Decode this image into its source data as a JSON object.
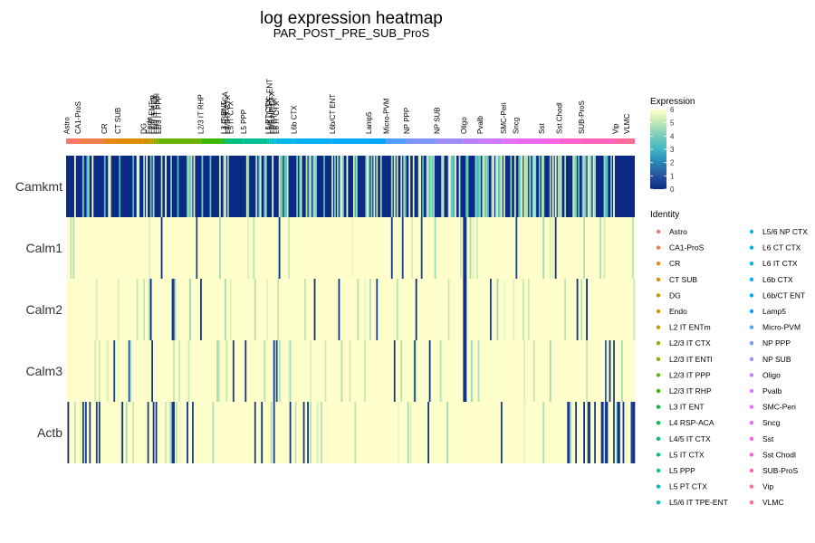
{
  "chart_data": {
    "type": "heatmap",
    "title": "log expression heatmap",
    "subtitle": "PAR_POST_PRE_SUB_ProS",
    "genes": [
      "Camkmt",
      "Calm1",
      "Calm2",
      "Calm3",
      "Actb"
    ],
    "identities": [
      {
        "name": "Astro",
        "color": "#F8766D"
      },
      {
        "name": "CA1-ProS",
        "color": "#F17E4F"
      },
      {
        "name": "CR",
        "color": "#E7861B"
      },
      {
        "name": "CT SUB",
        "color": "#DB8E00"
      },
      {
        "name": "DG",
        "color": "#CF9400"
      },
      {
        "name": "Endo",
        "color": "#C09B00"
      },
      {
        "name": "L2 IT ENTm",
        "color": "#AFA100"
      },
      {
        "name": "L2/3 IT CTX",
        "color": "#9DA700"
      },
      {
        "name": "L2/3 IT ENTl",
        "color": "#85AD00"
      },
      {
        "name": "L2/3 IT PPP",
        "color": "#68B200"
      },
      {
        "name": "L2/3 IT RHP",
        "color": "#3FB600"
      },
      {
        "name": "L3 IT ENT",
        "color": "#00BA38"
      },
      {
        "name": "L4 RSP-ACA",
        "color": "#00BC55"
      },
      {
        "name": "L4/5 IT CTX",
        "color": "#00BE6C"
      },
      {
        "name": "L5 IT CTX",
        "color": "#00C081"
      },
      {
        "name": "L5 PPP",
        "color": "#00C094"
      },
      {
        "name": "L5 PT CTX",
        "color": "#00C1A7"
      },
      {
        "name": "L5/6 IT TPE-ENT",
        "color": "#00C0B8"
      },
      {
        "name": "L5/6 NP CTX",
        "color": "#00BFC4"
      },
      {
        "name": "L6 CT CTX",
        "color": "#00BCD3"
      },
      {
        "name": "L6 IT CTX",
        "color": "#00B8E5"
      },
      {
        "name": "L6b CTX",
        "color": "#00B2F3"
      },
      {
        "name": "L6b/CT ENT",
        "color": "#00ACFC"
      },
      {
        "name": "Lamp5",
        "color": "#00A5FF"
      },
      {
        "name": "Micro-PVM",
        "color": "#529DFF"
      },
      {
        "name": "NP PPP",
        "color": "#7E95FF"
      },
      {
        "name": "NP SUB",
        "color": "#9F8CFF"
      },
      {
        "name": "Oligo",
        "color": "#B983FF"
      },
      {
        "name": "Pvalb",
        "color": "#CD79FF"
      },
      {
        "name": "SMC-Peri",
        "color": "#DF70F8"
      },
      {
        "name": "Sncg",
        "color": "#EC69EF"
      },
      {
        "name": "Sst",
        "color": "#F763E0"
      },
      {
        "name": "Sst Chodl",
        "color": "#FD61D1"
      },
      {
        "name": "SUB-ProS",
        "color": "#FF62BC"
      },
      {
        "name": "Vip",
        "color": "#FF67A4"
      },
      {
        "name": "VLMC",
        "color": "#FF6C90"
      }
    ],
    "column_groups": [
      {
        "name": "Astro",
        "start": 0.0,
        "end": 0.02
      },
      {
        "name": "CA1-ProS",
        "start": 0.02,
        "end": 0.066
      },
      {
        "name": "CR",
        "start": 0.066,
        "end": 0.09
      },
      {
        "name": "CT SUB",
        "start": 0.09,
        "end": 0.135
      },
      {
        "name": "DG",
        "start": 0.135,
        "end": 0.145
      },
      {
        "name": "Endo",
        "start": 0.145,
        "end": 0.15
      },
      {
        "name": "L2 IT ENTm",
        "start": 0.15,
        "end": 0.154
      },
      {
        "name": "L2/3 IT CTX",
        "start": 0.154,
        "end": 0.158
      },
      {
        "name": "L2/3 IT ENTl",
        "start": 0.158,
        "end": 0.162
      },
      {
        "name": "L2/3 IT PPP",
        "start": 0.162,
        "end": 0.236
      },
      {
        "name": "L2/3 IT RHP",
        "start": 0.236,
        "end": 0.276
      },
      {
        "name": "L3 IT ENT",
        "start": 0.276,
        "end": 0.279
      },
      {
        "name": "L4 RSP-ACA",
        "start": 0.279,
        "end": 0.283
      },
      {
        "name": "L4/5 IT CTX",
        "start": 0.283,
        "end": 0.288
      },
      {
        "name": "L5 IT CTX",
        "start": 0.288,
        "end": 0.311
      },
      {
        "name": "L5 PPP",
        "start": 0.311,
        "end": 0.354
      },
      {
        "name": "L5 PT CTX",
        "start": 0.354,
        "end": 0.357
      },
      {
        "name": "L5/6 IT TPE-ENT",
        "start": 0.357,
        "end": 0.361
      },
      {
        "name": "L5/6 NP CTX",
        "start": 0.361,
        "end": 0.365
      },
      {
        "name": "L6 CT CTX",
        "start": 0.365,
        "end": 0.369
      },
      {
        "name": "L6 IT CTX",
        "start": 0.369,
        "end": 0.4
      },
      {
        "name": "L6b CTX",
        "start": 0.4,
        "end": 0.467
      },
      {
        "name": "L6b/CT ENT",
        "start": 0.467,
        "end": 0.531
      },
      {
        "name": "Lamp5",
        "start": 0.531,
        "end": 0.562
      },
      {
        "name": "Micro-PVM",
        "start": 0.562,
        "end": 0.598
      },
      {
        "name": "NP PPP",
        "start": 0.598,
        "end": 0.651
      },
      {
        "name": "NP SUB",
        "start": 0.651,
        "end": 0.698
      },
      {
        "name": "Oligo",
        "start": 0.698,
        "end": 0.727
      },
      {
        "name": "Pvalb",
        "start": 0.727,
        "end": 0.768
      },
      {
        "name": "SMC-Peri",
        "start": 0.768,
        "end": 0.79
      },
      {
        "name": "Sncg",
        "start": 0.79,
        "end": 0.835
      },
      {
        "name": "Sst",
        "start": 0.835,
        "end": 0.866
      },
      {
        "name": "Sst Chodl",
        "start": 0.866,
        "end": 0.905
      },
      {
        "name": "SUB-ProS",
        "start": 0.905,
        "end": 0.965
      },
      {
        "name": "Vip",
        "start": 0.965,
        "end": 0.985
      },
      {
        "name": "VLMC",
        "start": 0.985,
        "end": 1.0
      }
    ],
    "legend": {
      "expression_title": "Expression",
      "expression_ticks": [
        "0",
        "1",
        "2",
        "3",
        "4",
        "5",
        "6"
      ],
      "expression_range": [
        0,
        6
      ],
      "color_low": "#0B2A86",
      "color_mid": "#41B6C4",
      "color_high": "#FFFFCC",
      "identity_title": "Identity"
    },
    "expression_summary": [
      {
        "gene": "Camkmt",
        "pattern": "mostly low (0) with frequent high values"
      },
      {
        "gene": "Calm1",
        "pattern": "mostly high (6) with few low cells"
      },
      {
        "gene": "Calm2",
        "pattern": "mostly high (6) with few low cells"
      },
      {
        "gene": "Calm3",
        "pattern": "mostly high (6) with few low cells"
      },
      {
        "gene": "Actb",
        "pattern": "mostly high (6) with scattered low cells, more low in Sst Chodl/SUB-ProS/Vip"
      }
    ]
  }
}
